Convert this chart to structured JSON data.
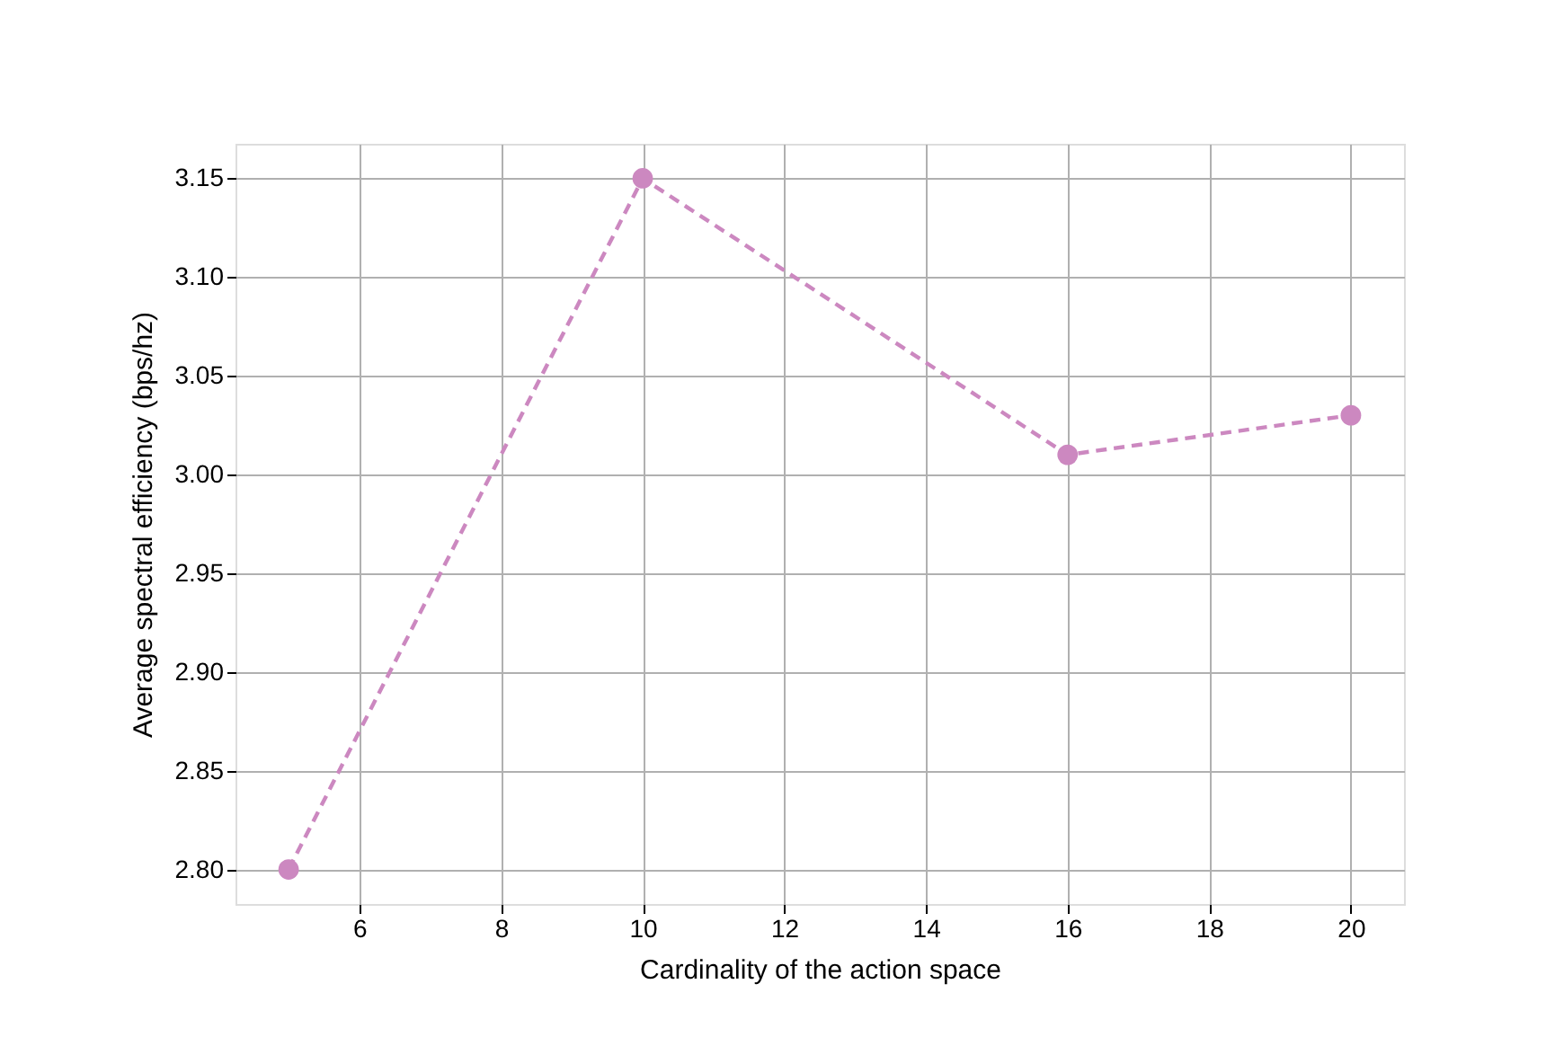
{
  "chart_data": {
    "type": "line",
    "xlabel": "Cardinality of the action space",
    "ylabel": "Average spectral efficiency (bps/hz)",
    "x": [
      5,
      10,
      16,
      20
    ],
    "series": [
      {
        "color": "#cc88c0",
        "values": [
          2.8,
          3.15,
          3.01,
          3.03
        ]
      }
    ],
    "xlim": [
      4.25,
      20.75
    ],
    "xticks": [
      6,
      8,
      10,
      12,
      14,
      16,
      18,
      20
    ],
    "ylim": [
      2.7825,
      3.1675
    ],
    "yticks": [
      {
        "value": 2.8,
        "label": "2.80"
      },
      2.85,
      {
        "value": 2.9,
        "label": "2.90"
      },
      2.95,
      {
        "value": 3.0,
        "label": "3.00"
      },
      3.05,
      {
        "value": 3.1,
        "label": "3.10"
      },
      3.15
    ],
    "grid": true,
    "marker": "circle",
    "line_style": "dashed"
  }
}
